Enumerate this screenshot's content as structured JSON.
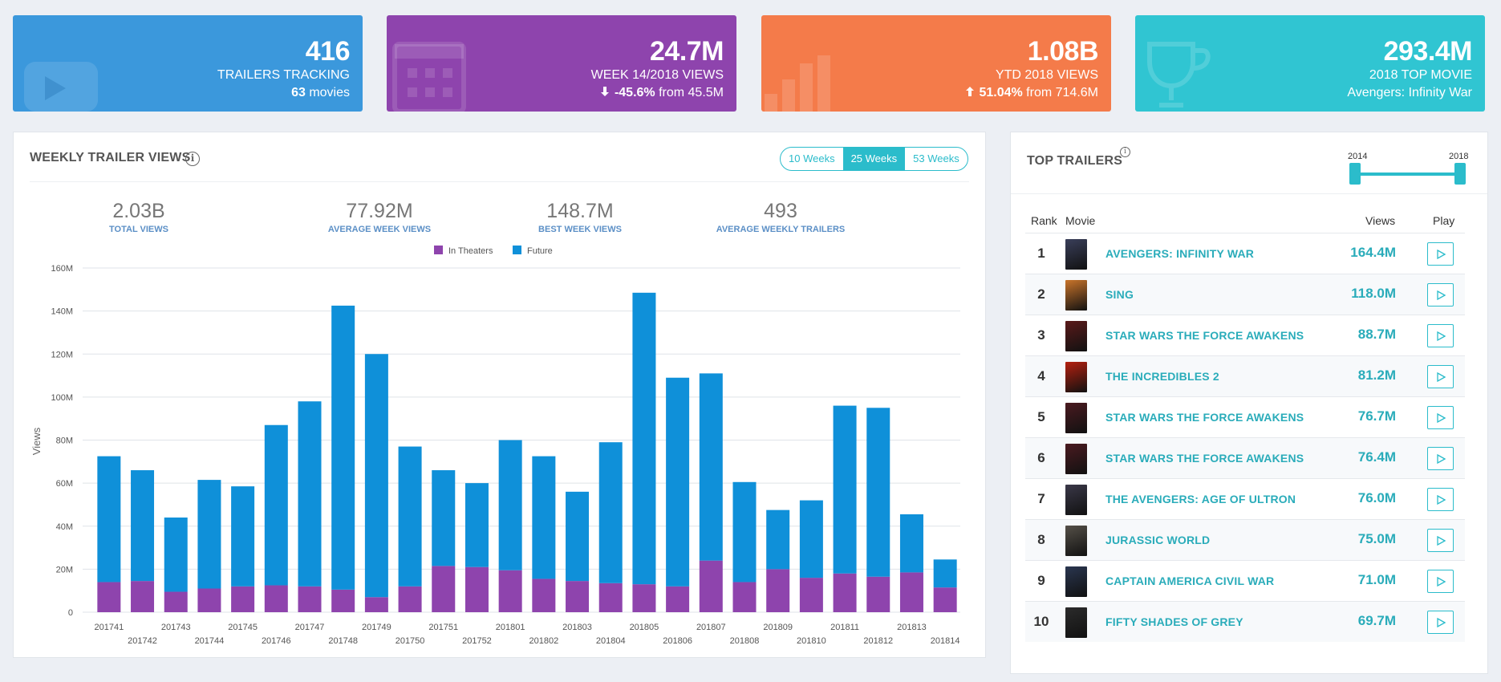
{
  "cards": [
    {
      "value": "416",
      "label": "TRAILERS TRACKING",
      "sub_bold": "63",
      "sub_rest": " movies",
      "color": "#3b98dc",
      "icon": "youtube-icon"
    },
    {
      "value": "24.7M",
      "label": "WEEK 14/2018 VIEWS",
      "sub_bold": "-45.6%",
      "sub_rest": " from 45.5M",
      "color": "#8e44ad",
      "icon": "calendar-icon",
      "arrow": "down"
    },
    {
      "value": "1.08B",
      "label": "YTD 2018 VIEWS",
      "sub_bold": "51.04%",
      "sub_rest": " from 714.6M",
      "color": "#f47b4a",
      "icon": "bar-chart-icon",
      "arrow": "up"
    },
    {
      "value": "293.4M",
      "label": "2018 TOP MOVIE",
      "sub_bold": "",
      "sub_rest": "Avengers: Infinity War",
      "color": "#30c5d2",
      "icon": "trophy-icon"
    }
  ],
  "weekly": {
    "title": "WEEKLY TRAILER VIEWS",
    "buttons": [
      "10 Weeks",
      "25 Weeks",
      "53 Weeks"
    ],
    "active_button": "25 Weeks",
    "kpis": [
      {
        "value": "2.03B",
        "label": "TOTAL VIEWS"
      },
      {
        "value": "77.92M",
        "label": "AVERAGE WEEK VIEWS"
      },
      {
        "value": "148.7M",
        "label": "BEST WEEK VIEWS"
      },
      {
        "value": "493",
        "label": "AVERAGE WEEKLY TRAILERS"
      }
    ]
  },
  "chart_data": {
    "type": "bar",
    "stacked": true,
    "title": "",
    "xlabel": "",
    "ylabel": "Views",
    "ylim": [
      0,
      160
    ],
    "y_ticks": [
      "0",
      "20M",
      "40M",
      "60M",
      "80M",
      "100M",
      "120M",
      "140M",
      "160M"
    ],
    "legend": [
      "In Theaters",
      "Future"
    ],
    "legend_position": "top-center",
    "categories": [
      "201741",
      "201742",
      "201743",
      "201744",
      "201745",
      "201746",
      "201747",
      "201748",
      "201749",
      "201750",
      "201751",
      "201752",
      "201801",
      "201802",
      "201803",
      "201804",
      "201805",
      "201806",
      "201807",
      "201808",
      "201809",
      "201810",
      "201811",
      "201812",
      "201813",
      "201814"
    ],
    "series": [
      {
        "name": "In Theaters",
        "color": "#8e44ad",
        "values": [
          14,
          14.5,
          9.5,
          11,
          12,
          12.5,
          12,
          10.5,
          7,
          12,
          21.5,
          21,
          19.5,
          15.5,
          14.5,
          13.5,
          13,
          12,
          24,
          14,
          20,
          16,
          18,
          16.5,
          18.5,
          11.5
        ]
      },
      {
        "name": "Future",
        "color": "#0f90d9",
        "values": [
          58.5,
          51.5,
          34.5,
          50.5,
          46.5,
          74.5,
          86,
          132,
          113,
          65,
          44.5,
          39,
          60.5,
          57,
          41.5,
          65.5,
          135.5,
          97,
          87,
          46.5,
          27.5,
          36,
          78,
          78.5,
          27,
          13
        ]
      }
    ]
  },
  "top_trailers": {
    "title": "TOP TRAILERS",
    "range_start": "2014",
    "range_end": "2018",
    "headers": {
      "rank": "Rank",
      "movie": "Movie",
      "views": "Views",
      "play": "Play"
    },
    "rows": [
      {
        "rank": "1",
        "movie": "AVENGERS: INFINITY WAR",
        "views": "164.4M"
      },
      {
        "rank": "2",
        "movie": "SING",
        "views": "118.0M"
      },
      {
        "rank": "3",
        "movie": "STAR WARS THE FORCE AWAKENS",
        "views": "88.7M"
      },
      {
        "rank": "4",
        "movie": "THE INCREDIBLES 2",
        "views": "81.2M"
      },
      {
        "rank": "5",
        "movie": "STAR WARS THE FORCE AWAKENS",
        "views": "76.7M"
      },
      {
        "rank": "6",
        "movie": "STAR WARS THE FORCE AWAKENS",
        "views": "76.4M"
      },
      {
        "rank": "7",
        "movie": "THE AVENGERS: AGE OF ULTRON",
        "views": "76.0M"
      },
      {
        "rank": "8",
        "movie": "JURASSIC WORLD",
        "views": "75.0M"
      },
      {
        "rank": "9",
        "movie": "CAPTAIN AMERICA CIVIL WAR",
        "views": "71.0M"
      },
      {
        "rank": "10",
        "movie": "FIFTY SHADES OF GREY",
        "views": "69.7M"
      }
    ],
    "poster_colors": [
      "#3a3f5a",
      "#c9742a",
      "#5a1a1a",
      "#b5200f",
      "#4a1a20",
      "#4a1a20",
      "#3a3848",
      "#555048",
      "#2a3650",
      "#2b2b2b"
    ]
  }
}
